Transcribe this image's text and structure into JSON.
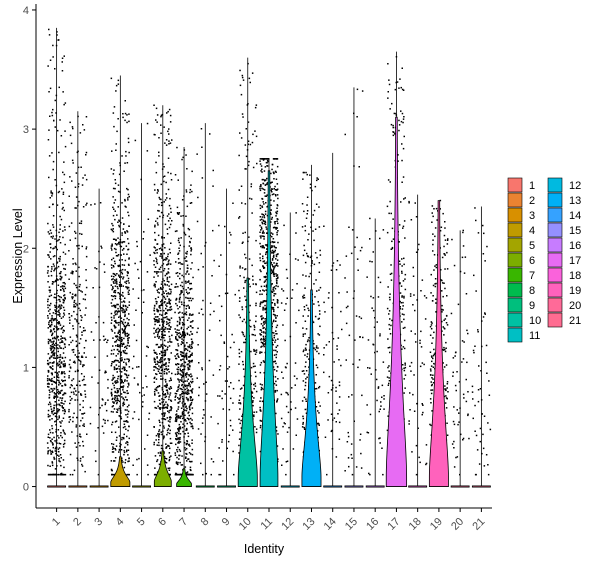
{
  "chart_data": {
    "type": "violin",
    "title": "",
    "xlabel": "Identity",
    "ylabel": "Expression Level",
    "ylim": [
      -0.18,
      4.05
    ],
    "yticks": [
      0,
      1,
      2,
      3,
      4
    ],
    "categories": [
      "1",
      "2",
      "3",
      "4",
      "5",
      "6",
      "7",
      "8",
      "9",
      "10",
      "11",
      "12",
      "13",
      "14",
      "15",
      "16",
      "17",
      "18",
      "19",
      "20",
      "21"
    ],
    "colors": [
      "#F8766D",
      "#EA8331",
      "#D89000",
      "#C09B00",
      "#A3A500",
      "#7CAE00",
      "#39B600",
      "#00BB4E",
      "#00BF7D",
      "#00C1A3",
      "#00BFC4",
      "#00BAE0",
      "#00B0F6",
      "#35A2FF",
      "#9590FF",
      "#C77CFF",
      "#E76BF3",
      "#FA62DB",
      "#FF62BC",
      "#FF6A98",
      "#FF6C91"
    ],
    "legend_title": "",
    "legend": {
      "position": "right",
      "columns": [
        [
          "1",
          "2",
          "3",
          "4",
          "5",
          "6",
          "7",
          "8",
          "9",
          "10",
          "11"
        ],
        [
          "12",
          "13",
          "14",
          "15",
          "16",
          "17",
          "18",
          "19",
          "20",
          "21"
        ]
      ]
    },
    "series": [
      {
        "category": "1",
        "max": 3.85,
        "violin_top": 0.02,
        "violin_peak_width": 0.0,
        "point_density": "high",
        "point_center": 1.1
      },
      {
        "category": "2",
        "max": 3.15,
        "violin_top": 0.02,
        "violin_peak_width": 0.0,
        "point_density": "medium",
        "point_center": 1.2
      },
      {
        "category": "3",
        "max": 2.5,
        "violin_top": 0.02,
        "violin_peak_width": 0.0,
        "point_density": "low",
        "point_center": 1.0
      },
      {
        "category": "4",
        "max": 3.45,
        "violin_top": 0.25,
        "violin_peak_width": 0.45,
        "point_density": "high",
        "point_center": 1.2
      },
      {
        "category": "5",
        "max": 3.05,
        "violin_top": 0.02,
        "violin_peak_width": 0.0,
        "point_density": "low",
        "point_center": 1.0
      },
      {
        "category": "6",
        "max": 3.2,
        "violin_top": 0.3,
        "violin_peak_width": 0.4,
        "point_density": "high",
        "point_center": 1.1
      },
      {
        "category": "7",
        "max": 2.85,
        "violin_top": 0.15,
        "violin_peak_width": 0.35,
        "point_density": "high",
        "point_center": 0.9
      },
      {
        "category": "8",
        "max": 3.05,
        "violin_top": 0.02,
        "violin_peak_width": 0.0,
        "point_density": "low",
        "point_center": 0.9
      },
      {
        "category": "9",
        "max": 2.5,
        "violin_top": 0.02,
        "violin_peak_width": 0.0,
        "point_density": "low",
        "point_center": 0.8
      },
      {
        "category": "10",
        "max": 3.6,
        "violin_top": 1.75,
        "violin_peak_width": 0.45,
        "point_density": "medium",
        "point_center": 0.9
      },
      {
        "category": "11",
        "max": 2.75,
        "violin_top": 2.65,
        "violin_peak_width": 0.42,
        "point_density": "high",
        "point_center": 1.7
      },
      {
        "category": "12",
        "max": 2.3,
        "violin_top": 0.02,
        "violin_peak_width": 0.0,
        "point_density": "low",
        "point_center": 1.0
      },
      {
        "category": "13",
        "max": 2.7,
        "violin_top": 1.65,
        "violin_peak_width": 0.45,
        "point_density": "medium",
        "point_center": 0.9
      },
      {
        "category": "14",
        "max": 2.8,
        "violin_top": 0.02,
        "violin_peak_width": 0.0,
        "point_density": "low",
        "point_center": 1.0
      },
      {
        "category": "15",
        "max": 3.35,
        "violin_top": 0.02,
        "violin_peak_width": 0.0,
        "point_density": "low",
        "point_center": 1.0
      },
      {
        "category": "16",
        "max": 2.25,
        "violin_top": 0.02,
        "violin_peak_width": 0.0,
        "point_density": "low",
        "point_center": 1.0
      },
      {
        "category": "17",
        "max": 3.65,
        "violin_top": 3.1,
        "violin_peak_width": 0.48,
        "point_density": "medium",
        "point_center": 1.3
      },
      {
        "category": "18",
        "max": 2.45,
        "violin_top": 0.02,
        "violin_peak_width": 0.0,
        "point_density": "low",
        "point_center": 1.0
      },
      {
        "category": "19",
        "max": 2.4,
        "violin_top": 2.4,
        "violin_peak_width": 0.45,
        "point_density": "medium",
        "point_center": 1.0
      },
      {
        "category": "20",
        "max": 2.15,
        "violin_top": 0.02,
        "violin_peak_width": 0.0,
        "point_density": "low",
        "point_center": 1.0
      },
      {
        "category": "21",
        "max": 2.35,
        "violin_top": 0.02,
        "violin_peak_width": 0.0,
        "point_density": "low",
        "point_center": 0.8
      }
    ],
    "grid": false
  }
}
